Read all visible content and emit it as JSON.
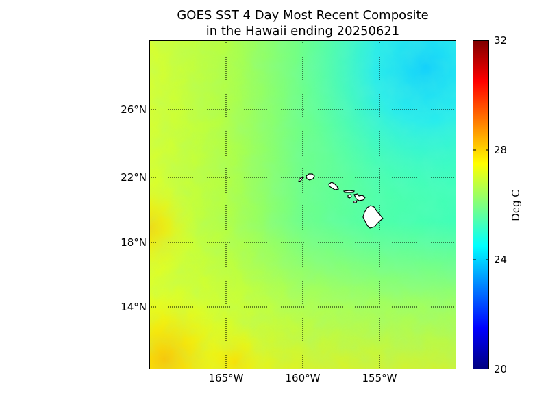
{
  "title": {
    "line1": "GOES SST 4 Day Most Recent Composite",
    "line2": "in the Hawaii ending 20250621"
  },
  "map": {
    "lat_labels": [
      "26°N",
      "22°N",
      "18°N",
      "14°N"
    ],
    "lon_labels": [
      "165°W",
      "160°W",
      "155°W"
    ],
    "gridlines": "dotted",
    "land_color": "#ffffff",
    "coast_color": "#000000"
  },
  "colorbar": {
    "units": "Deg C",
    "ticks": [
      "20",
      "24",
      "28",
      "32"
    ],
    "colormap": "jet",
    "colors": [
      "#00007f",
      "#0000ff",
      "#007fff",
      "#00ffff",
      "#7fff7f",
      "#ffff00",
      "#ff7f00",
      "#ff0000",
      "#7f0000"
    ]
  }
}
